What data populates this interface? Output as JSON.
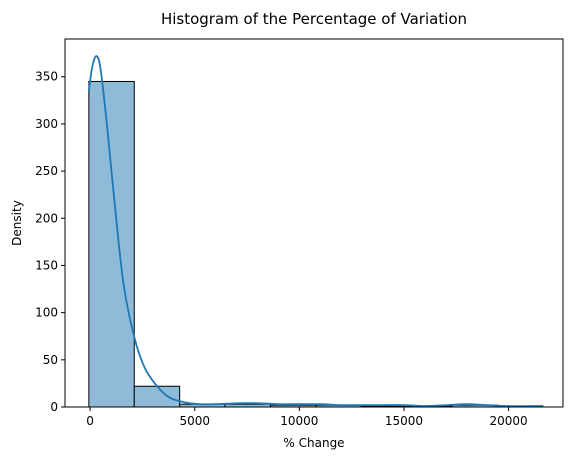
{
  "chart_data": {
    "type": "bar",
    "title": "Histogram of the Percentage of Variation",
    "xlabel": "% Change",
    "ylabel": "Density",
    "xlim": [
      -1200,
      22600
    ],
    "ylim": [
      0,
      390
    ],
    "xticks": [
      0,
      5000,
      10000,
      15000,
      20000
    ],
    "yticks": [
      0,
      50,
      100,
      150,
      200,
      250,
      300,
      350
    ],
    "grid": false,
    "bins": [
      {
        "start": -60,
        "end": 2110,
        "value": 345
      },
      {
        "start": 2110,
        "end": 4280,
        "value": 22
      },
      {
        "start": 4280,
        "end": 6450,
        "value": 3
      },
      {
        "start": 6450,
        "end": 8620,
        "value": 3
      },
      {
        "start": 8620,
        "end": 10790,
        "value": 2
      },
      {
        "start": 10790,
        "end": 12960,
        "value": 2
      },
      {
        "start": 12960,
        "end": 15130,
        "value": 1
      },
      {
        "start": 15130,
        "end": 17300,
        "value": 1
      },
      {
        "start": 17300,
        "end": 19470,
        "value": 2
      },
      {
        "start": 19470,
        "end": 21640,
        "value": 1
      }
    ],
    "kde": {
      "x": [
        -60,
        100,
        300,
        500,
        800,
        1200,
        1600,
        2100,
        2600,
        3200,
        3800,
        4500,
        5200,
        6000,
        7000,
        8000,
        9000,
        10000,
        11000,
        12000,
        13000,
        14000,
        15000,
        16000,
        17000,
        18000,
        19000,
        20000,
        21000,
        21640
      ],
      "y": [
        335,
        360,
        372,
        358,
        300,
        210,
        130,
        75,
        42,
        22,
        10,
        5,
        3,
        3,
        4,
        4,
        3,
        3,
        3,
        2,
        2,
        2,
        2,
        1,
        2,
        3,
        2,
        1,
        1,
        1
      ]
    },
    "bar_color": "#8fbbd9",
    "bar_edge_color": "#000000",
    "kde_color": "#1f77b4"
  }
}
